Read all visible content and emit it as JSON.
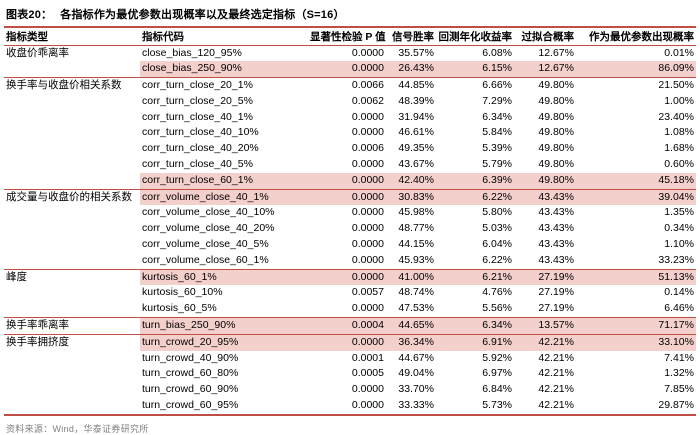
{
  "title": {
    "label": "图表20：",
    "text": "各指标作为最优参数出现概率以及最终选定指标（S=16）"
  },
  "table": {
    "headers": [
      "指标类型",
      "指标代码",
      "显著性检验 P 值",
      "信号胜率",
      "回测年化收益率",
      "过拟合概率",
      "作为最优参数出现概率"
    ],
    "rows": [
      {
        "category": "收盘价乖离率",
        "code": "close_bias_120_95%",
        "p": "0.0000",
        "win": "35.57%",
        "ret": "6.08%",
        "overfit": "12.67%",
        "prob": "0.01%",
        "highlight": false,
        "group_end": false
      },
      {
        "category": "",
        "code": "close_bias_250_90%",
        "p": "0.0000",
        "win": "26.43%",
        "ret": "6.15%",
        "overfit": "12.67%",
        "prob": "86.09%",
        "highlight": true,
        "group_end": true
      },
      {
        "category": "换手率与收盘价相关系数",
        "code": "corr_turn_close_20_1%",
        "p": "0.0066",
        "win": "44.85%",
        "ret": "6.66%",
        "overfit": "49.80%",
        "prob": "21.50%",
        "highlight": false,
        "group_end": false
      },
      {
        "category": "",
        "code": "corr_turn_close_20_5%",
        "p": "0.0062",
        "win": "48.39%",
        "ret": "7.29%",
        "overfit": "49.80%",
        "prob": "1.00%",
        "highlight": false,
        "group_end": false
      },
      {
        "category": "",
        "code": "corr_turn_close_40_1%",
        "p": "0.0000",
        "win": "31.94%",
        "ret": "6.34%",
        "overfit": "49.80%",
        "prob": "23.40%",
        "highlight": false,
        "group_end": false
      },
      {
        "category": "",
        "code": "corr_turn_close_40_10%",
        "p": "0.0000",
        "win": "46.61%",
        "ret": "5.84%",
        "overfit": "49.80%",
        "prob": "1.08%",
        "highlight": false,
        "group_end": false
      },
      {
        "category": "",
        "code": "corr_turn_close_40_20%",
        "p": "0.0006",
        "win": "49.35%",
        "ret": "5.39%",
        "overfit": "49.80%",
        "prob": "1.68%",
        "highlight": false,
        "group_end": false
      },
      {
        "category": "",
        "code": "corr_turn_close_40_5%",
        "p": "0.0000",
        "win": "43.67%",
        "ret": "5.79%",
        "overfit": "49.80%",
        "prob": "0.60%",
        "highlight": false,
        "group_end": false
      },
      {
        "category": "",
        "code": "corr_turn_close_60_1%",
        "p": "0.0000",
        "win": "42.40%",
        "ret": "6.39%",
        "overfit": "49.80%",
        "prob": "45.18%",
        "highlight": true,
        "group_end": true
      },
      {
        "category": "成交量与收盘价的相关系数",
        "code": "corr_volume_close_40_1%",
        "p": "0.0000",
        "win": "30.83%",
        "ret": "6.22%",
        "overfit": "43.43%",
        "prob": "39.04%",
        "highlight": true,
        "group_end": false
      },
      {
        "category": "",
        "code": "corr_volume_close_40_10%",
        "p": "0.0000",
        "win": "45.98%",
        "ret": "5.80%",
        "overfit": "43.43%",
        "prob": "1.35%",
        "highlight": false,
        "group_end": false
      },
      {
        "category": "",
        "code": "corr_volume_close_40_20%",
        "p": "0.0000",
        "win": "48.77%",
        "ret": "5.03%",
        "overfit": "43.43%",
        "prob": "0.34%",
        "highlight": false,
        "group_end": false
      },
      {
        "category": "",
        "code": "corr_volume_close_40_5%",
        "p": "0.0000",
        "win": "44.15%",
        "ret": "6.04%",
        "overfit": "43.43%",
        "prob": "1.10%",
        "highlight": false,
        "group_end": false
      },
      {
        "category": "",
        "code": "corr_volume_close_60_1%",
        "p": "0.0000",
        "win": "45.93%",
        "ret": "6.22%",
        "overfit": "43.43%",
        "prob": "33.23%",
        "highlight": false,
        "group_end": true
      },
      {
        "category": "峰度",
        "code": "kurtosis_60_1%",
        "p": "0.0000",
        "win": "41.00%",
        "ret": "6.21%",
        "overfit": "27.19%",
        "prob": "51.13%",
        "highlight": true,
        "group_end": false
      },
      {
        "category": "",
        "code": "kurtosis_60_10%",
        "p": "0.0057",
        "win": "48.74%",
        "ret": "4.76%",
        "overfit": "27.19%",
        "prob": "0.14%",
        "highlight": false,
        "group_end": false
      },
      {
        "category": "",
        "code": "kurtosis_60_5%",
        "p": "0.0000",
        "win": "47.53%",
        "ret": "5.56%",
        "overfit": "27.19%",
        "prob": "6.46%",
        "highlight": false,
        "group_end": true
      },
      {
        "category": "换手率乖离率",
        "code": "turn_bias_250_90%",
        "p": "0.0004",
        "win": "44.65%",
        "ret": "6.34%",
        "overfit": "13.57%",
        "prob": "71.17%",
        "highlight": true,
        "group_end": true
      },
      {
        "category": "换手率拥挤度",
        "code": "turn_crowd_20_95%",
        "p": "0.0000",
        "win": "36.34%",
        "ret": "6.91%",
        "overfit": "42.21%",
        "prob": "33.10%",
        "highlight": true,
        "group_end": false
      },
      {
        "category": "",
        "code": "turn_crowd_40_90%",
        "p": "0.0001",
        "win": "44.67%",
        "ret": "5.92%",
        "overfit": "42.21%",
        "prob": "7.41%",
        "highlight": false,
        "group_end": false
      },
      {
        "category": "",
        "code": "turn_crowd_60_80%",
        "p": "0.0005",
        "win": "49.04%",
        "ret": "6.97%",
        "overfit": "42.21%",
        "prob": "1.32%",
        "highlight": false,
        "group_end": false
      },
      {
        "category": "",
        "code": "turn_crowd_60_90%",
        "p": "0.0000",
        "win": "33.70%",
        "ret": "6.84%",
        "overfit": "42.21%",
        "prob": "7.85%",
        "highlight": false,
        "group_end": false
      },
      {
        "category": "",
        "code": "turn_crowd_60_95%",
        "p": "0.0000",
        "win": "33.33%",
        "ret": "5.73%",
        "overfit": "42.21%",
        "prob": "29.87%",
        "highlight": false,
        "group_end": false
      }
    ]
  },
  "footer": {
    "source": "资料来源：Wind，华泰证券研究所"
  },
  "colors": {
    "accent_line": "#bf4e44",
    "highlight_bg": "#f4d0cc",
    "footer_text": "#7f7f7f"
  }
}
